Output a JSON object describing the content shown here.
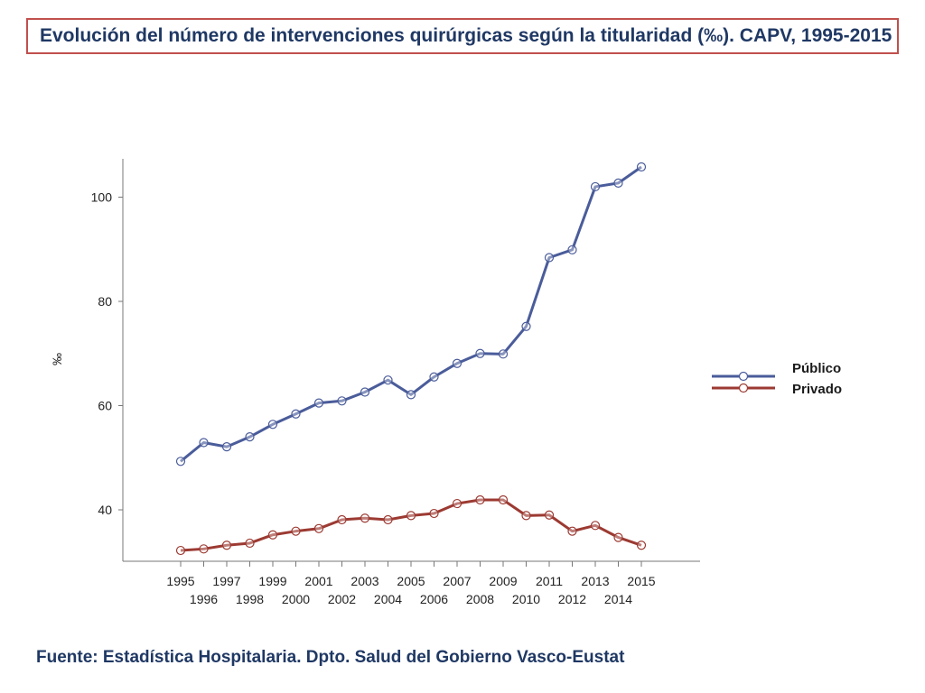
{
  "header": {
    "title": "Evolución del número de intervenciones quirúrgicas según la titularidad (‰). CAPV, 1995-2015"
  },
  "footer": {
    "source": "Fuente: Estadística Hospitalaria. Dpto. Salud del Gobierno Vasco-Eustat"
  },
  "chart_data": {
    "type": "line",
    "title": "Evolución del número de intervenciones quirúrgicas según la titularidad (‰). CAPV, 1995-2015",
    "xlabel": "",
    "ylabel": "‰",
    "x": [
      "1995",
      "1996",
      "1997",
      "1998",
      "1999",
      "2000",
      "2001",
      "2002",
      "2003",
      "2004",
      "2005",
      "2006",
      "2007",
      "2008",
      "2009",
      "2010",
      "2011",
      "2012",
      "2013",
      "2014",
      "2015"
    ],
    "yticks": [
      40,
      60,
      80,
      100
    ],
    "ylim": [
      31,
      108
    ],
    "legend_position": "right",
    "series": [
      {
        "name": "Público",
        "color": "#4a5c9a",
        "values": [
          49.3,
          52.9,
          52.1,
          54.0,
          56.4,
          58.4,
          60.5,
          60.9,
          62.6,
          64.9,
          62.1,
          65.5,
          68.1,
          70.0,
          69.9,
          75.2,
          88.4,
          89.9,
          102.0,
          102.7,
          105.8
        ]
      },
      {
        "name": "Privado",
        "color": "#9c3a32",
        "values": [
          32.2,
          32.5,
          33.2,
          33.6,
          35.2,
          35.9,
          36.4,
          38.1,
          38.4,
          38.1,
          38.9,
          39.3,
          41.2,
          41.9,
          41.9,
          38.9,
          39.0,
          35.9,
          37.0,
          34.7,
          33.2
        ]
      }
    ]
  }
}
